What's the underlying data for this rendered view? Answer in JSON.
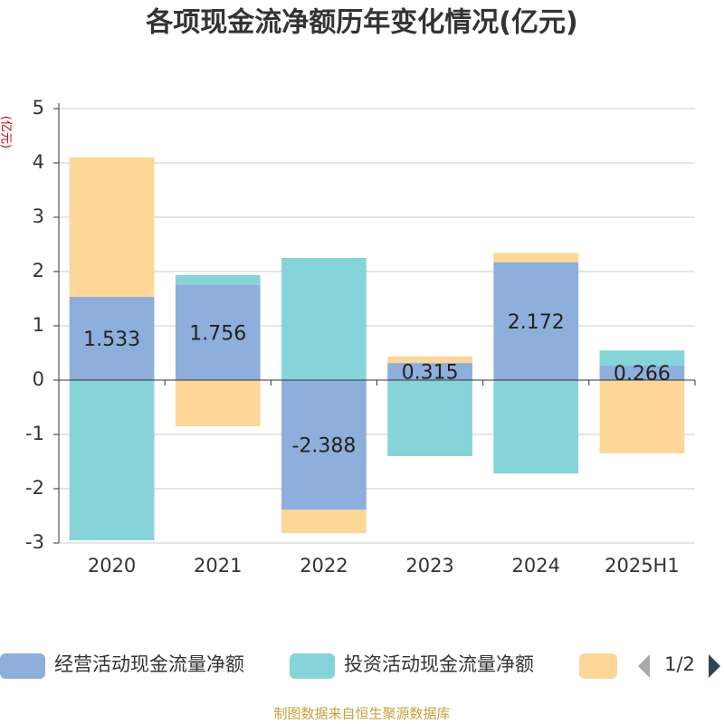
{
  "chart_data": {
    "type": "stacked-bar",
    "title": "各项现金流净额历年变化情况(亿元)",
    "y_label": "(亿元)",
    "categories": [
      "2020",
      "2021",
      "2022",
      "2023",
      "2024",
      "2025H1"
    ],
    "series": [
      {
        "name": "经营活动现金流量净额",
        "color": "#8eaedb",
        "values": [
          1.533,
          1.756,
          -2.388,
          0.315,
          2.172,
          0.266
        ],
        "show_labels": true
      },
      {
        "name": "投资活动现金流量净额",
        "color": "#86d4d8",
        "values": [
          -2.95,
          0.18,
          2.25,
          -1.4,
          -1.72,
          0.28
        ],
        "show_labels": false
      },
      {
        "color": "#fdd797",
        "values": [
          2.57,
          -0.85,
          -0.43,
          0.12,
          0.17,
          -1.35
        ],
        "show_labels": false
      }
    ],
    "ylim": [
      -3,
      5
    ],
    "yticks": [
      -3,
      -2,
      -1,
      0,
      1,
      2,
      3,
      4,
      5
    ],
    "grid": true,
    "legend_page": "1/2",
    "source": "制图数据来自恒生聚源数据库"
  }
}
